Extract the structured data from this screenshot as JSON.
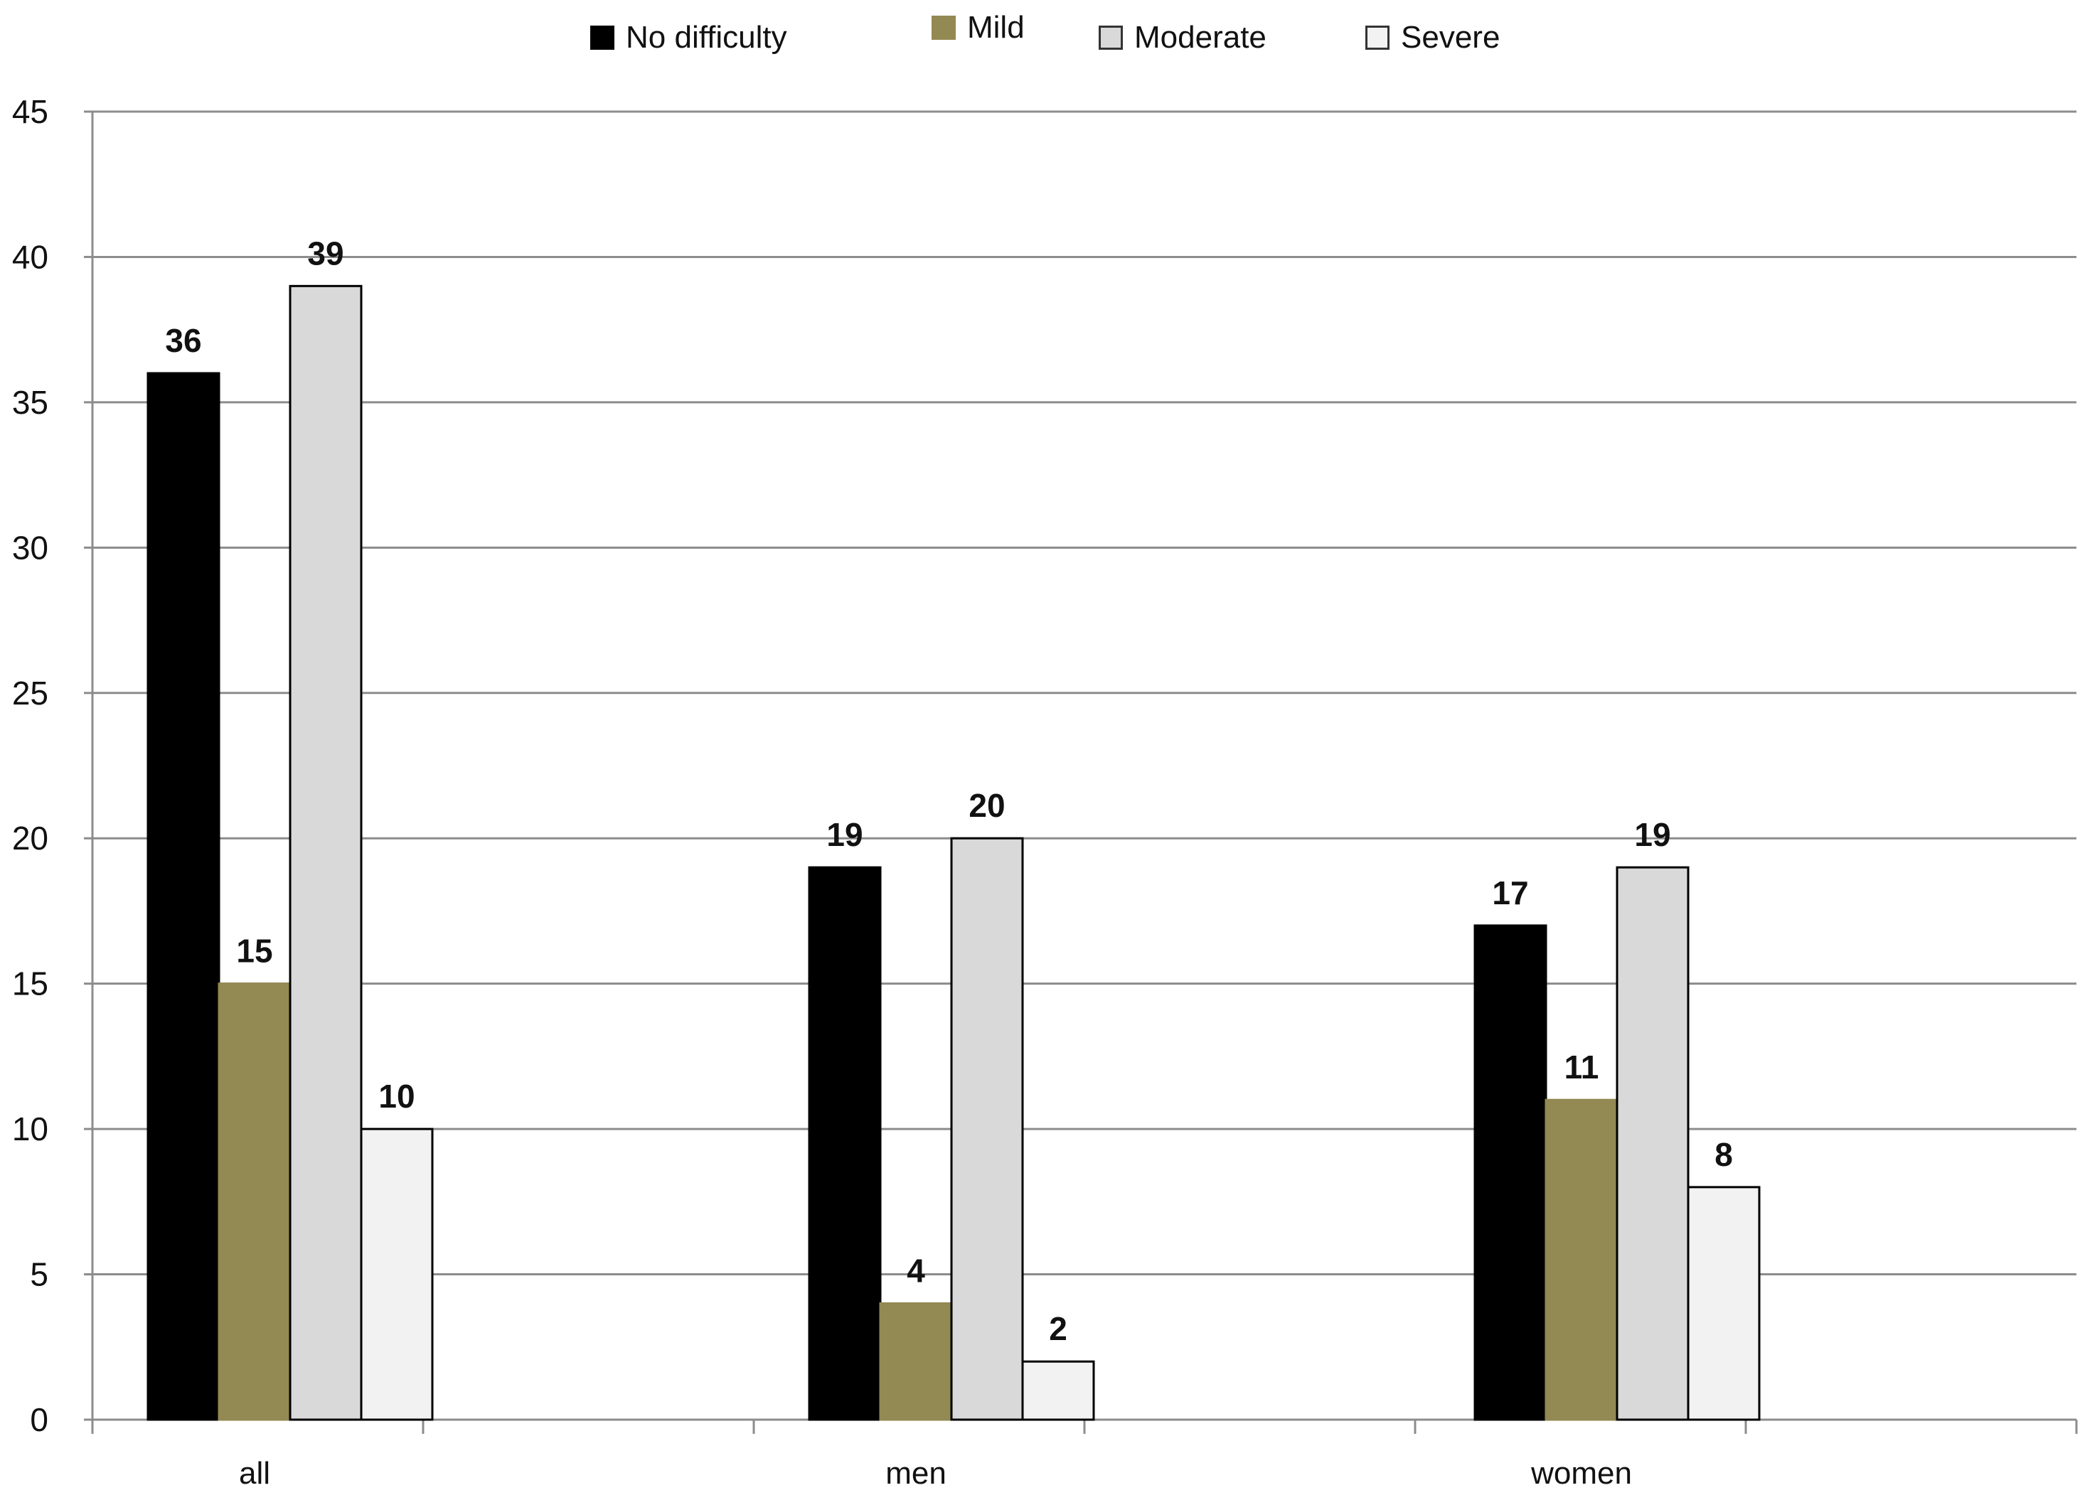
{
  "chart_data": {
    "type": "bar",
    "categories": [
      "all",
      "men",
      "women"
    ],
    "series": [
      {
        "name": "No difficulty",
        "color": "#000000",
        "values": [
          36,
          19,
          17
        ]
      },
      {
        "name": "Mild",
        "color": "#938953",
        "values": [
          15,
          4,
          11
        ]
      },
      {
        "name": "Moderate",
        "color": "#d9d9d9",
        "values": [
          39,
          20,
          19
        ]
      },
      {
        "name": "Severe",
        "color": "#f2f2f2",
        "values": [
          10,
          2,
          8
        ]
      }
    ],
    "ylim": [
      0,
      45
    ],
    "yticks": [
      0,
      5,
      10,
      15,
      20,
      25,
      30,
      35,
      40,
      45
    ],
    "grid": true,
    "legend_position": "top",
    "title": "",
    "xlabel": "",
    "ylabel": ""
  }
}
